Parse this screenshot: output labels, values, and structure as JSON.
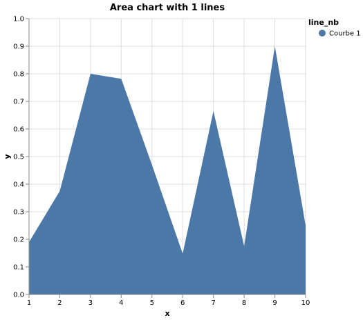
{
  "chart_data": {
    "type": "area",
    "title": "Area chart with 1 lines",
    "xlabel": "x",
    "ylabel": "y",
    "xlim": [
      1,
      10
    ],
    "ylim": [
      0,
      1
    ],
    "x_ticks": [
      1,
      2,
      3,
      4,
      5,
      6,
      7,
      8,
      9,
      10
    ],
    "y_ticks": [
      "0.0",
      "0.1",
      "0.2",
      "0.3",
      "0.4",
      "0.5",
      "0.6",
      "0.7",
      "0.8",
      "0.9",
      "1.0"
    ],
    "grid": true,
    "legend": {
      "title": "line_nb",
      "placement": "right",
      "entries": [
        "Courbe 1"
      ]
    },
    "series": [
      {
        "name": "Courbe 1",
        "color": "#4c78a8",
        "x": [
          1,
          2,
          3,
          4,
          5,
          6,
          7,
          8,
          9,
          10
        ],
        "values": [
          0.19,
          0.375,
          0.8,
          0.782,
          0.47,
          0.148,
          0.665,
          0.175,
          0.9,
          0.25
        ]
      }
    ]
  }
}
